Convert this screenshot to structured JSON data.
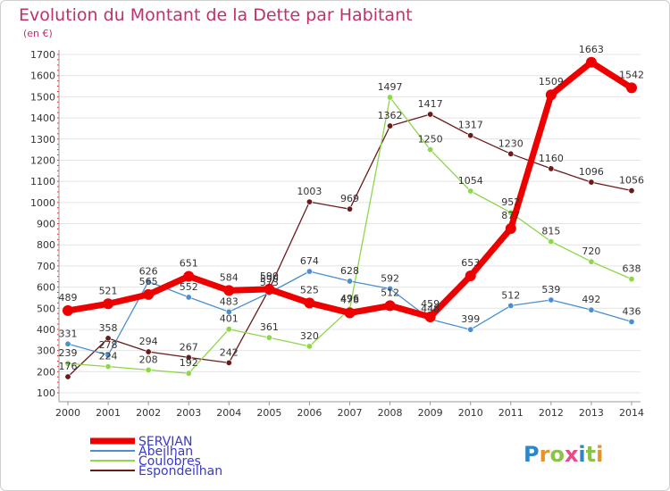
{
  "chart_data": {
    "type": "line",
    "title": "Evolution du Montant de la Dette par Habitant",
    "subtitle": "(en €)",
    "xlabel": "",
    "ylabel": "",
    "x": [
      2000,
      2001,
      2002,
      2003,
      2004,
      2005,
      2006,
      2007,
      2008,
      2009,
      2010,
      2011,
      2012,
      2013,
      2014
    ],
    "x_tick_labels": [
      "2000",
      "2001",
      "2002",
      "2003",
      "2004",
      "2005",
      "2006",
      "2007",
      "2008",
      "2009",
      "2010",
      "2011",
      "2012",
      "2013",
      "2014"
    ],
    "ylim": [
      100,
      1700
    ],
    "y_ticks": [
      100,
      200,
      300,
      400,
      500,
      600,
      700,
      800,
      900,
      1000,
      1100,
      1200,
      1300,
      1400,
      1500,
      1600,
      1700
    ],
    "grid": "horizontal",
    "legend_position": "bottom-left",
    "series": [
      {
        "name": "Espondeilhan",
        "color": "#6b1a1a",
        "line_width": 1.3,
        "marker_size": 3.2,
        "values": [
          176,
          358,
          294,
          267,
          242,
          590,
          1003,
          969,
          1362,
          1417,
          1317,
          1230,
          1160,
          1096,
          1056
        ]
      },
      {
        "name": "Coulobres",
        "color": "#8ed64a",
        "line_width": 1.3,
        "marker_size": 3.2,
        "values": [
          239,
          224,
          208,
          192,
          401,
          361,
          320,
          496,
          1497,
          1250,
          1054,
          952,
          815,
          720,
          638
        ]
      },
      {
        "name": "Abeilhan",
        "color": "#4a8fd0",
        "line_width": 1.3,
        "marker_size": 3.2,
        "values": [
          331,
          278,
          626,
          552,
          483,
          573,
          674,
          628,
          592,
          448,
          399,
          512,
          539,
          492,
          436
        ]
      },
      {
        "name": "SERVIAN",
        "color": "#ee0000",
        "line_width": 7,
        "marker_size": 6,
        "values": [
          489,
          521,
          565,
          651,
          584,
          590,
          525,
          478,
          512,
          459,
          653,
          877,
          1509,
          1663,
          1542
        ]
      }
    ],
    "legend_order": [
      "SERVIAN",
      "Abeilhan",
      "Coulobres",
      "Espondeilhan"
    ]
  },
  "logo": {
    "text": "Proxiti",
    "letters": [
      {
        "ch": "P",
        "color": "#2e86c8"
      },
      {
        "ch": "r",
        "color": "#e8922a"
      },
      {
        "ch": "o",
        "color": "#8bc34a"
      },
      {
        "ch": "x",
        "color": "#e84a8a"
      },
      {
        "ch": "i",
        "color": "#2e86c8"
      },
      {
        "ch": "t",
        "color": "#8bc34a"
      },
      {
        "ch": "i",
        "color": "#e8922a"
      }
    ]
  }
}
